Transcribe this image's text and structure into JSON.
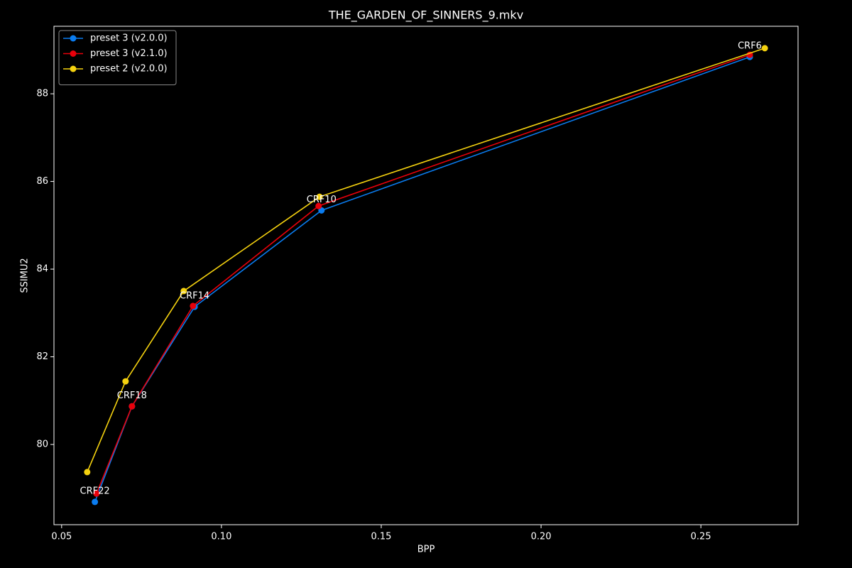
{
  "chart_data": {
    "type": "line",
    "title": "THE_GARDEN_OF_SINNERS_9.mkv",
    "x_label": "BPP",
    "y_label": "SSIMU2",
    "xlim": [
      0.0476,
      0.2804
    ],
    "ylim": [
      78.17,
      89.54
    ],
    "xticks": [
      0.05,
      {
        "value": 0.1,
        "label": "0.10"
      },
      0.15,
      {
        "value": 0.2,
        "label": "0.20"
      },
      0.25
    ],
    "yticks": [
      80,
      82,
      84,
      86,
      88
    ],
    "grid": false,
    "legend": "upper left",
    "series": [
      {
        "name": "preset 3 (v2.0.0)",
        "color": "#0a7cf0",
        "x": [
          0.0604,
          0.072,
          0.0916,
          0.1313,
          0.2653
        ],
        "values": [
          78.69,
          80.87,
          83.14,
          85.34,
          88.84
        ],
        "point_labels": [
          "CRF22",
          "CRF18",
          "CRF14",
          "CRF10",
          "CRF6"
        ]
      },
      {
        "name": "preset 3 (v2.1.0)",
        "color": "#e8000b",
        "x": [
          0.0609,
          0.072,
          0.0911,
          0.1304,
          0.2653
        ],
        "values": [
          78.88,
          80.87,
          83.16,
          85.44,
          88.89
        ]
      },
      {
        "name": "preset 2 (v2.0.0)",
        "color": "#f5d20f",
        "x": [
          0.058,
          0.07,
          0.0882,
          0.1307,
          0.27
        ],
        "values": [
          79.37,
          81.44,
          83.5,
          85.65,
          89.04
        ]
      }
    ]
  }
}
